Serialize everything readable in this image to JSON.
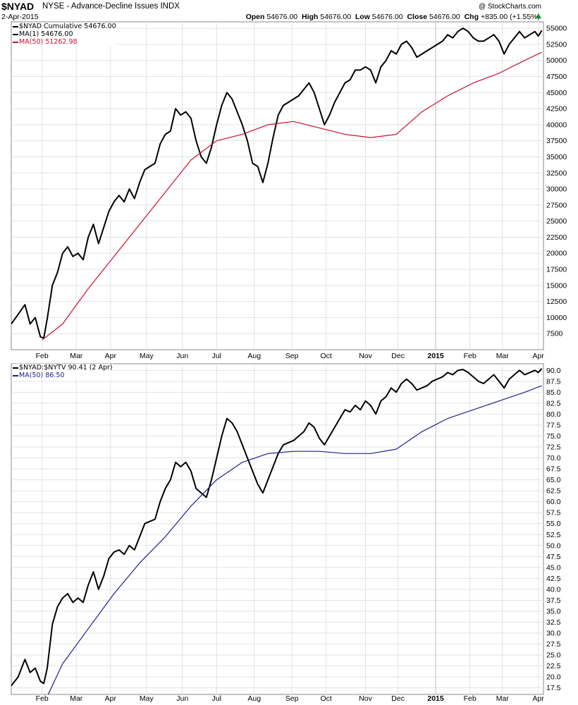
{
  "header": {
    "symbol": "$NYAD",
    "description": "NYSE - Advance-Decline Issues  INDX",
    "date": "2-Apr-2015",
    "brand": "@ StockCharts.com",
    "open_label": "Open",
    "open": "54676.00",
    "high_label": "High",
    "high": "54676.00",
    "low_label": "Low",
    "low": "54676.00",
    "close_label": "Close",
    "close": "54676.00",
    "chg_label": "Chg",
    "chg": "+835.00 (+1.55%)",
    "change_color": "#1a8a2a"
  },
  "colors": {
    "price": "#000000",
    "ma_top": "#c8102e",
    "ma_bottom": "#1f1f8f",
    "grid": "#dfe3e8"
  },
  "x_axis": {
    "ticks": [
      {
        "label": "Feb",
        "bold": false
      },
      {
        "label": "Mar",
        "bold": false
      },
      {
        "label": "Apr",
        "bold": false
      },
      {
        "label": "May",
        "bold": false
      },
      {
        "label": "Jun",
        "bold": false
      },
      {
        "label": "Jul",
        "bold": false
      },
      {
        "label": "Aug",
        "bold": false
      },
      {
        "label": "Sep",
        "bold": false
      },
      {
        "label": "Oct",
        "bold": false
      },
      {
        "label": "Nov",
        "bold": false
      },
      {
        "label": "Dec",
        "bold": false
      },
      {
        "label": "2015",
        "bold": true
      },
      {
        "label": "Feb",
        "bold": false
      },
      {
        "label": "Mar",
        "bold": false
      },
      {
        "label": "Apr",
        "bold": false
      }
    ],
    "session_index": [
      18,
      38,
      58,
      79,
      100,
      120,
      142,
      164,
      184,
      207,
      226,
      248,
      268,
      287,
      308
    ],
    "total_sessions": 311
  },
  "chart_data": [
    {
      "type": "line",
      "legend": [
        {
          "label": "$NYAD Cumulative 54676.00",
          "color": "#000000"
        },
        {
          "label": "MA(1) 54676.00",
          "color": "#000000"
        },
        {
          "label": "MA(50) 51262.98",
          "color": "#c8102e"
        }
      ],
      "ylim": [
        5000,
        56000
      ],
      "yticks": [
        7500,
        10000,
        12500,
        15000,
        17500,
        20000,
        22500,
        25000,
        27500,
        30000,
        32500,
        35000,
        37500,
        40000,
        42500,
        45000,
        47500,
        50000,
        52500,
        55000
      ],
      "ytick_labels": [
        "7500",
        "10000",
        "12500",
        "15000",
        "17500",
        "20000",
        "22500",
        "25000",
        "27500",
        "30000",
        "32500",
        "35000",
        "37500",
        "40000",
        "42500",
        "45000",
        "47500",
        "50000",
        "52500",
        "55000"
      ],
      "series": [
        {
          "name": "$NYAD Cumulative",
          "key": "price",
          "x": [
            0,
            4,
            8,
            11,
            14,
            17,
            19,
            21,
            24,
            27,
            30,
            33,
            36,
            39,
            42,
            45,
            48,
            51,
            54,
            57,
            60,
            63,
            66,
            69,
            72,
            75,
            78,
            81,
            84,
            87,
            90,
            93,
            96,
            99,
            102,
            105,
            108,
            111,
            114,
            117,
            120,
            123,
            126,
            129,
            132,
            135,
            138,
            141,
            144,
            147,
            150,
            153,
            156,
            159,
            162,
            165,
            168,
            171,
            174,
            177,
            180,
            183,
            186,
            189,
            192,
            195,
            198,
            201,
            204,
            207,
            210,
            213,
            216,
            219,
            222,
            225,
            228,
            231,
            234,
            237,
            240,
            243,
            246,
            249,
            252,
            255,
            258,
            261,
            264,
            267,
            270,
            273,
            276,
            279,
            282,
            285,
            288,
            291,
            294,
            297,
            300,
            303,
            306,
            308,
            310
          ],
          "values": [
            9000,
            10500,
            12000,
            9000,
            10000,
            7000,
            6800,
            9800,
            15000,
            17000,
            20000,
            21000,
            19500,
            20000,
            19000,
            22500,
            24500,
            21500,
            24000,
            26500,
            28000,
            29000,
            28000,
            30000,
            28500,
            31000,
            33000,
            33500,
            34000,
            37000,
            38500,
            39000,
            42500,
            41500,
            42000,
            41000,
            37500,
            35000,
            34000,
            36500,
            40000,
            43000,
            45000,
            44000,
            42000,
            40000,
            37500,
            34000,
            33500,
            31000,
            34000,
            38000,
            41500,
            43000,
            43500,
            44000,
            44500,
            45500,
            46500,
            45000,
            42500,
            40000,
            41500,
            43500,
            45000,
            46500,
            47000,
            48500,
            48500,
            49000,
            48500,
            46500,
            49000,
            50000,
            51500,
            51000,
            52500,
            53000,
            52000,
            50500,
            51000,
            51500,
            52000,
            52500,
            53000,
            54000,
            53500,
            54500,
            55000,
            54500,
            53500,
            53000,
            53000,
            53500,
            54000,
            53000,
            51000,
            52500,
            53500,
            54500,
            53500,
            54000,
            54500,
            53800,
            54676
          ]
        },
        {
          "name": "MA(50)",
          "key": "ma",
          "x": [
            18,
            30,
            45,
            60,
            75,
            90,
            105,
            120,
            135,
            150,
            165,
            180,
            195,
            210,
            225,
            240,
            255,
            270,
            285,
            300,
            310
          ],
          "values": [
            6500,
            9000,
            14500,
            19500,
            24500,
            29500,
            34500,
            37500,
            38500,
            40000,
            40500,
            39500,
            38500,
            38000,
            38500,
            42000,
            44500,
            46500,
            48000,
            50000,
            51263
          ]
        }
      ]
    },
    {
      "type": "line",
      "legend": [
        {
          "label": "$NYAD:$NYTV 90.41 (2 Apr)",
          "color": "#000000"
        },
        {
          "label": "MA(50) 86.50",
          "color": "#1f1f8f"
        }
      ],
      "ylim": [
        16,
        91.5
      ],
      "yticks": [
        17.5,
        20,
        22.5,
        25,
        27.5,
        30,
        32.5,
        35,
        37.5,
        40,
        42.5,
        45,
        47.5,
        50,
        52.5,
        55,
        57.5,
        60,
        62.5,
        65,
        67.5,
        70,
        72.5,
        75,
        77.5,
        80,
        82.5,
        85,
        87.5,
        90
      ],
      "ytick_labels": [
        "17.5",
        "20.0",
        "22.5",
        "25.0",
        "27.5",
        "30.0",
        "32.5",
        "35.0",
        "37.5",
        "40.0",
        "42.5",
        "45.0",
        "47.5",
        "50.0",
        "52.5",
        "55.0",
        "57.5",
        "60.0",
        "62.5",
        "65.0",
        "67.5",
        "70.0",
        "72.5",
        "75.0",
        "77.5",
        "80.0",
        "82.5",
        "85.0",
        "87.5",
        "90.0"
      ],
      "series": [
        {
          "name": "$NYAD:$NYTV",
          "key": "price",
          "x": [
            0,
            4,
            8,
            11,
            14,
            17,
            19,
            21,
            24,
            27,
            30,
            33,
            36,
            39,
            42,
            45,
            48,
            51,
            54,
            57,
            60,
            63,
            66,
            69,
            72,
            75,
            78,
            81,
            84,
            87,
            90,
            93,
            96,
            99,
            102,
            105,
            108,
            111,
            114,
            117,
            120,
            123,
            126,
            129,
            132,
            135,
            138,
            141,
            144,
            147,
            150,
            153,
            156,
            159,
            162,
            165,
            168,
            171,
            174,
            177,
            180,
            183,
            186,
            189,
            192,
            195,
            198,
            201,
            204,
            207,
            210,
            213,
            216,
            219,
            222,
            225,
            228,
            231,
            234,
            237,
            240,
            243,
            246,
            249,
            252,
            255,
            258,
            261,
            264,
            267,
            270,
            273,
            276,
            279,
            282,
            285,
            288,
            291,
            294,
            297,
            300,
            303,
            306,
            308,
            310
          ],
          "values": [
            18,
            20,
            24,
            21,
            22,
            19,
            18.5,
            22,
            32,
            36,
            38,
            39,
            37,
            38,
            37,
            41,
            44,
            40,
            43,
            47,
            48.5,
            49,
            48,
            50,
            49,
            52,
            55,
            55.5,
            56,
            60,
            63,
            65,
            69,
            68,
            69,
            67,
            63,
            62,
            61,
            65,
            70,
            75,
            79,
            78,
            76,
            73,
            70,
            67,
            64,
            62,
            65,
            68,
            71,
            73,
            73.5,
            74,
            75,
            76,
            78,
            77,
            74.5,
            73,
            75,
            77,
            79,
            81,
            80.5,
            82,
            81,
            83,
            82,
            80,
            83,
            84,
            86,
            85,
            87,
            88,
            87,
            85.5,
            86,
            86.5,
            87.5,
            88,
            88.5,
            89.5,
            89,
            90,
            90.2,
            89.5,
            88.5,
            87.5,
            87,
            88,
            89,
            87.5,
            86,
            88,
            89,
            90,
            89,
            89.5,
            90,
            89.5,
            90.41
          ]
        },
        {
          "name": "MA(50)",
          "key": "ma",
          "x": [
            18,
            30,
            45,
            60,
            75,
            90,
            105,
            120,
            135,
            150,
            165,
            180,
            195,
            210,
            225,
            240,
            255,
            270,
            285,
            300,
            310
          ],
          "values": [
            13,
            23,
            31,
            39,
            46,
            52,
            59,
            65,
            69,
            71,
            71.5,
            71.5,
            71,
            71,
            72,
            76,
            79,
            81,
            83,
            85,
            86.5
          ]
        }
      ]
    }
  ]
}
